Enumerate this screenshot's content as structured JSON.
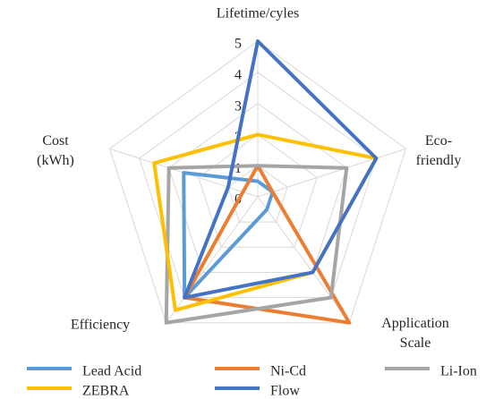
{
  "chart_data": {
    "type": "radar",
    "categories": [
      "Lifetime/cyles",
      "Eco-friendly",
      "Application Scale",
      "Efficiency",
      "Cost (kWh)"
    ],
    "rlim": [
      0,
      5
    ],
    "rticks": [
      0,
      1,
      2,
      3,
      4,
      5
    ],
    "grid": true,
    "legend": "bottom",
    "series": [
      {
        "name": "Lead Acid",
        "color": "#5B9BD5",
        "values": [
          0.5,
          0.5,
          0.5,
          4,
          2.5
        ]
      },
      {
        "name": "Ni-Cd",
        "color": "#ED7D31",
        "values": [
          1,
          0.5,
          5,
          4,
          0.5
        ]
      },
      {
        "name": "Li-Ion",
        "color": "#A5A5A5",
        "values": [
          1,
          3,
          4,
          5,
          3
        ]
      },
      {
        "name": "ZEBRA",
        "color": "#FFC000",
        "values": [
          2,
          4,
          3,
          4.5,
          3.5
        ]
      },
      {
        "name": "Flow",
        "color": "#4472C4",
        "values": [
          5,
          4,
          3,
          4,
          1
        ]
      }
    ]
  }
}
